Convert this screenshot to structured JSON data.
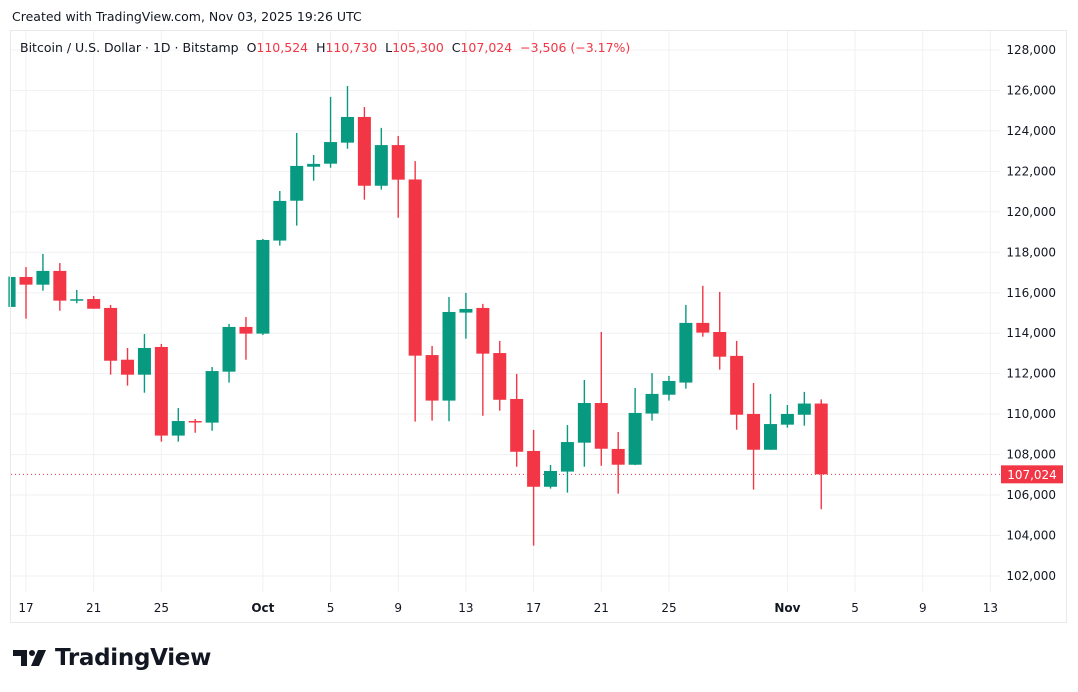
{
  "header": {
    "credit": "Created with TradingView.com, Nov 03, 2025 19:26 UTC"
  },
  "legend": {
    "symbol": "Bitcoin / U.S. Dollar · 1D · Bitstamp",
    "o_label": "O",
    "o": "110,524",
    "h_label": "H",
    "h": "110,730",
    "l_label": "L",
    "l": "105,300",
    "c_label": "C",
    "c": "107,024",
    "change": "−3,506 (−3.17%)"
  },
  "footer": {
    "logo_text": "TradingView"
  },
  "chart_data": {
    "type": "candlestick",
    "colors": {
      "up": "#089981",
      "down": "#f23645",
      "grid": "#f0f1f3",
      "text": "#131722"
    },
    "ylim": [
      101000,
      129000
    ],
    "y_ticks": [
      "128,000",
      "126,000",
      "124,000",
      "122,000",
      "120,000",
      "118,000",
      "116,000",
      "114,000",
      "112,000",
      "110,000",
      "108,000",
      "106,000",
      "104,000",
      "102,000"
    ],
    "last_price": {
      "value": 107024,
      "label": "107,024"
    },
    "x_ticks": [
      {
        "label": "17",
        "date": "2025-09-17",
        "bold": false
      },
      {
        "label": "21",
        "date": "2025-09-21",
        "bold": false
      },
      {
        "label": "25",
        "date": "2025-09-25",
        "bold": false
      },
      {
        "label": "Oct",
        "date": "2025-10-01",
        "bold": true
      },
      {
        "label": "5",
        "date": "2025-10-05",
        "bold": false
      },
      {
        "label": "9",
        "date": "2025-10-09",
        "bold": false
      },
      {
        "label": "13",
        "date": "2025-10-13",
        "bold": false
      },
      {
        "label": "17",
        "date": "2025-10-17",
        "bold": false
      },
      {
        "label": "21",
        "date": "2025-10-21",
        "bold": false
      },
      {
        "label": "25",
        "date": "2025-10-25",
        "bold": false
      },
      {
        "label": "Nov",
        "date": "2025-11-01",
        "bold": true
      },
      {
        "label": "5",
        "date": "2025-11-05",
        "bold": false
      },
      {
        "label": "9",
        "date": "2025-11-09",
        "bold": false
      },
      {
        "label": "13",
        "date": "2025-11-13",
        "bold": false
      }
    ],
    "candles": [
      {
        "date": "2025-09-16",
        "o": 115300,
        "h": 116800,
        "l": 115300,
        "c": 116780
      },
      {
        "date": "2025-09-17",
        "o": 116780,
        "h": 117270,
        "l": 114720,
        "c": 116400
      },
      {
        "date": "2025-09-18",
        "o": 116400,
        "h": 117920,
        "l": 116100,
        "c": 117080
      },
      {
        "date": "2025-09-19",
        "o": 117080,
        "h": 117470,
        "l": 115110,
        "c": 115610
      },
      {
        "date": "2025-09-20",
        "o": 115610,
        "h": 116140,
        "l": 115480,
        "c": 115680
      },
      {
        "date": "2025-09-21",
        "o": 115690,
        "h": 115840,
        "l": 115210,
        "c": 115210
      },
      {
        "date": "2025-09-22",
        "o": 115250,
        "h": 115400,
        "l": 111950,
        "c": 112640
      },
      {
        "date": "2025-09-23",
        "o": 112690,
        "h": 113270,
        "l": 111410,
        "c": 111950
      },
      {
        "date": "2025-09-24",
        "o": 111950,
        "h": 113960,
        "l": 111060,
        "c": 113270
      },
      {
        "date": "2025-09-25",
        "o": 113320,
        "h": 113470,
        "l": 108640,
        "c": 108940
      },
      {
        "date": "2025-09-26",
        "o": 108940,
        "h": 110300,
        "l": 108640,
        "c": 109660
      },
      {
        "date": "2025-09-27",
        "o": 109660,
        "h": 109760,
        "l": 109080,
        "c": 109640
      },
      {
        "date": "2025-09-28",
        "o": 109580,
        "h": 112330,
        "l": 109180,
        "c": 112130
      },
      {
        "date": "2025-09-29",
        "o": 112100,
        "h": 114460,
        "l": 111560,
        "c": 114310
      },
      {
        "date": "2025-09-30",
        "o": 114310,
        "h": 114800,
        "l": 112690,
        "c": 113980
      },
      {
        "date": "2025-10-01",
        "o": 113980,
        "h": 118660,
        "l": 113910,
        "c": 118610
      },
      {
        "date": "2025-10-02",
        "o": 118580,
        "h": 121030,
        "l": 118330,
        "c": 120540
      },
      {
        "date": "2025-10-03",
        "o": 120550,
        "h": 123900,
        "l": 119320,
        "c": 122270
      },
      {
        "date": "2025-10-04",
        "o": 122230,
        "h": 122810,
        "l": 121540,
        "c": 122370
      },
      {
        "date": "2025-10-05",
        "o": 122380,
        "h": 125680,
        "l": 122180,
        "c": 123450
      },
      {
        "date": "2025-10-06",
        "o": 123420,
        "h": 126220,
        "l": 123120,
        "c": 124690
      },
      {
        "date": "2025-10-07",
        "o": 124690,
        "h": 125180,
        "l": 120600,
        "c": 121290
      },
      {
        "date": "2025-10-08",
        "o": 121290,
        "h": 124150,
        "l": 121100,
        "c": 123300
      },
      {
        "date": "2025-10-09",
        "o": 123300,
        "h": 123750,
        "l": 119710,
        "c": 121590
      },
      {
        "date": "2025-10-10",
        "o": 121600,
        "h": 122510,
        "l": 109630,
        "c": 112890
      },
      {
        "date": "2025-10-11",
        "o": 112920,
        "h": 113370,
        "l": 109680,
        "c": 110670
      },
      {
        "date": "2025-10-12",
        "o": 110670,
        "h": 115790,
        "l": 109650,
        "c": 115050
      },
      {
        "date": "2025-10-13",
        "o": 115020,
        "h": 115990,
        "l": 113730,
        "c": 115200
      },
      {
        "date": "2025-10-14",
        "o": 115250,
        "h": 115450,
        "l": 109920,
        "c": 112990
      },
      {
        "date": "2025-10-15",
        "o": 113020,
        "h": 113620,
        "l": 110170,
        "c": 110710
      },
      {
        "date": "2025-10-16",
        "o": 110750,
        "h": 111990,
        "l": 107400,
        "c": 108140
      },
      {
        "date": "2025-10-17",
        "o": 108180,
        "h": 109220,
        "l": 103500,
        "c": 106410
      },
      {
        "date": "2025-10-18",
        "o": 106410,
        "h": 107490,
        "l": 106320,
        "c": 107190
      },
      {
        "date": "2025-10-19",
        "o": 107160,
        "h": 109460,
        "l": 106120,
        "c": 108620
      },
      {
        "date": "2025-10-20",
        "o": 108590,
        "h": 111690,
        "l": 107400,
        "c": 110550
      },
      {
        "date": "2025-10-21",
        "o": 110550,
        "h": 114060,
        "l": 107450,
        "c": 108290
      },
      {
        "date": "2025-10-22",
        "o": 108280,
        "h": 109120,
        "l": 106070,
        "c": 107500
      },
      {
        "date": "2025-10-23",
        "o": 107500,
        "h": 111290,
        "l": 107480,
        "c": 110060
      },
      {
        "date": "2025-10-24",
        "o": 110030,
        "h": 112030,
        "l": 109680,
        "c": 111000
      },
      {
        "date": "2025-10-25",
        "o": 110960,
        "h": 111890,
        "l": 110670,
        "c": 111640
      },
      {
        "date": "2025-10-26",
        "o": 111560,
        "h": 115400,
        "l": 111260,
        "c": 114510
      },
      {
        "date": "2025-10-27",
        "o": 114510,
        "h": 116340,
        "l": 113830,
        "c": 114030
      },
      {
        "date": "2025-10-28",
        "o": 114060,
        "h": 116040,
        "l": 112200,
        "c": 112840
      },
      {
        "date": "2025-10-29",
        "o": 112880,
        "h": 113620,
        "l": 109230,
        "c": 109970
      },
      {
        "date": "2025-10-30",
        "o": 110010,
        "h": 111540,
        "l": 106270,
        "c": 108240
      },
      {
        "date": "2025-10-31",
        "o": 108240,
        "h": 111000,
        "l": 108240,
        "c": 109510
      },
      {
        "date": "2025-11-01",
        "o": 109480,
        "h": 110450,
        "l": 109330,
        "c": 110010
      },
      {
        "date": "2025-11-02",
        "o": 109970,
        "h": 111100,
        "l": 109430,
        "c": 110524
      },
      {
        "date": "2025-11-03",
        "o": 110524,
        "h": 110730,
        "l": 105300,
        "c": 107024
      }
    ]
  }
}
